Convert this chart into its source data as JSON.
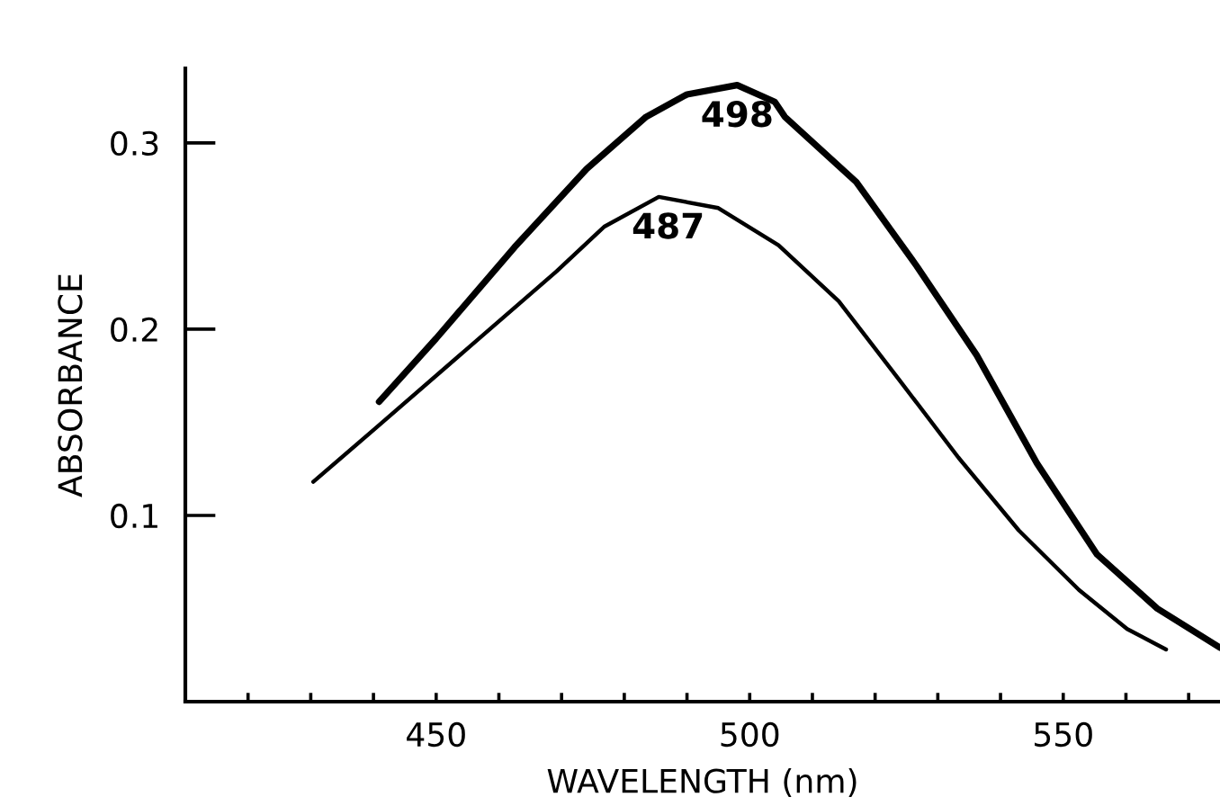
{
  "chart_data": {
    "type": "line",
    "xlabel": "WAVELENGTH (nm)",
    "ylabel": "ABSORBANCE",
    "xlim": [
      410,
      575
    ],
    "ylim": [
      0,
      0.34
    ],
    "xticks": [
      {
        "value": 420,
        "label": null
      },
      {
        "value": 430,
        "label": null
      },
      {
        "value": 440,
        "label": null
      },
      450,
      {
        "value": 460,
        "label": null
      },
      {
        "value": 470,
        "label": null
      },
      {
        "value": 480,
        "label": null
      },
      {
        "value": 490,
        "label": null
      },
      500,
      {
        "value": 510,
        "label": null
      },
      {
        "value": 520,
        "label": null
      },
      {
        "value": 530,
        "label": null
      },
      {
        "value": 540,
        "label": null
      },
      550,
      {
        "value": 560,
        "label": null
      },
      {
        "value": 570,
        "label": null
      }
    ],
    "yticks": [
      0.1,
      0.2,
      0.3
    ],
    "marker": "none",
    "line_style": "solid",
    "series": [
      {
        "color": "#000000",
        "x": [
          440.9,
          450,
          462.5,
          474,
          483.5,
          490,
          498,
          504,
          505.6,
          517,
          526.6,
          536.2,
          545.8,
          555.4,
          565,
          575
        ],
        "values": [
          0.161,
          0.195,
          0.244,
          0.286,
          0.314,
          0.326,
          0.331,
          0.322,
          0.314,
          0.279,
          0.234,
          0.186,
          0.128,
          0.079,
          0.05,
          0.029
        ]
      },
      {
        "color": "#000000",
        "x": [
          430.4,
          440.4,
          454.8,
          469.2,
          476.8,
          485.5,
          495,
          504.6,
          514.2,
          523.8,
          533.3,
          542.9,
          552.5,
          560.2,
          566.4
        ],
        "values": [
          0.118,
          0.147,
          0.189,
          0.231,
          0.255,
          0.271,
          0.265,
          0.245,
          0.215,
          0.173,
          0.131,
          0.092,
          0.06,
          0.039,
          0.028
        ]
      }
    ],
    "annotations": [
      {
        "text": "498",
        "x": 498,
        "y": 0.331
      },
      {
        "text": "487",
        "x": 487,
        "y": 0.271
      }
    ]
  }
}
